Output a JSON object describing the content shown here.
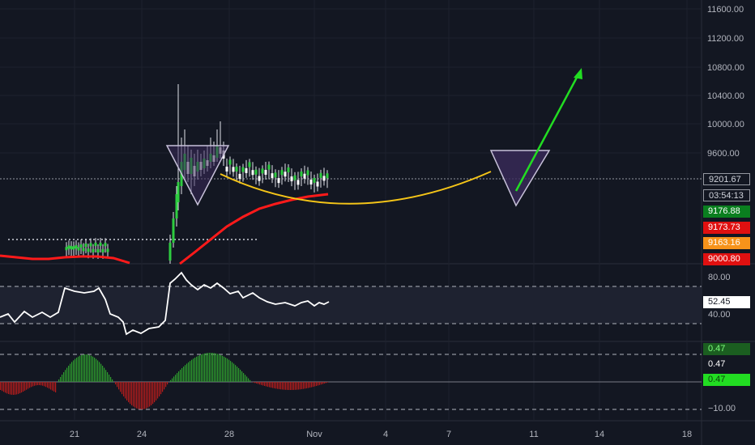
{
  "colors": {
    "background": "#131722",
    "grid": "#1e222d",
    "text": "#b2b5be",
    "candle_up": "#26a69a",
    "candle_down": "#ef5350",
    "ma": "#ff1a1a",
    "cup": "#f5c518",
    "arrow": "#22dd22",
    "triangle_fill": "#3a2a5a",
    "rsi_line": "#ffffff",
    "hist_pos": "#2e9e2e",
    "hist_neg": "#b71c1c"
  },
  "price_axis": {
    "ticks": [
      "11600.00",
      "11200.00",
      "10800.00",
      "10400.00",
      "10000.00",
      "9600.00"
    ],
    "ticks_low": [],
    "current_price": "9201.67",
    "countdown": "03:54:13",
    "labels": [
      {
        "text": "9176.88",
        "bg": "#0a7f1f",
        "fg": "#ffffff"
      },
      {
        "text": "9173.73",
        "bg": "#e01010",
        "fg": "#ffffff"
      },
      {
        "text": "9163.16",
        "bg": "#f7931a",
        "fg": "#ffffff"
      },
      {
        "text": "9000.80",
        "bg": "#e01010",
        "fg": "#ffffff"
      }
    ]
  },
  "rsi_axis": {
    "ticks": [
      "80.00",
      "40.00"
    ],
    "current": "52.45"
  },
  "macd_axis": {
    "labels": [
      "0.47",
      "0.47",
      "0.47"
    ],
    "low": "−10.00"
  },
  "x_axis": {
    "ticks": [
      "21",
      "24",
      "28",
      "Nov",
      "4",
      "7",
      "11",
      "14",
      "18"
    ]
  },
  "chart_data": {
    "type": "candlestick",
    "title": "",
    "ylabel": "",
    "xlabel": "",
    "ylim": [
      9000,
      11700
    ],
    "annotations": [
      "inverted-triangle-left",
      "cup-curve",
      "inverted-triangle-right",
      "green-arrow"
    ],
    "rsi_levels": [
      80,
      40
    ]
  }
}
